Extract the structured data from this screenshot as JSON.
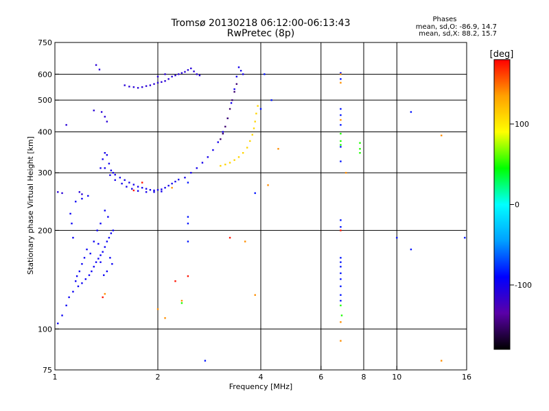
{
  "header": {
    "title_line1": "Tromsø 20130218 06:12:00-06:13:43",
    "title_line2": "RwPretec (8p)",
    "phase_title": "Phases",
    "phase_o": "mean, sd,O: -86.9, 14.7",
    "phase_x": "mean, sd,X:  88.2, 15.7"
  },
  "chart_data": {
    "type": "scatter",
    "xlabel": "Frequency [MHz]",
    "ylabel": "Stationary phase Virtual Height [km]",
    "x_scale": "log",
    "y_scale": "log",
    "xlim": [
      1,
      16
    ],
    "ylim": [
      75,
      750
    ],
    "x_ticks": [
      1,
      2,
      4,
      6,
      8,
      10,
      16
    ],
    "y_ticks": [
      75,
      100,
      200,
      300,
      400,
      500,
      600,
      750
    ],
    "x_gridlines": [
      2,
      4,
      6,
      8,
      10
    ],
    "y_gridlines": [
      100,
      200,
      300,
      400,
      500,
      600
    ],
    "grid": true,
    "colorbar": {
      "label": "[deg]",
      "min": -180,
      "max": 180,
      "ticks": [
        100,
        0,
        -100
      ],
      "colors": [
        "#000000",
        "#5a00a8",
        "#0000ff",
        "#00a0ff",
        "#00ffff",
        "#00ff00",
        "#ffff00",
        "#ffa000",
        "#ff0000"
      ]
    },
    "series": [
      {
        "phase": -95,
        "points": [
          [
            1.02,
            104
          ],
          [
            1.05,
            110
          ],
          [
            1.08,
            118
          ],
          [
            1.1,
            125
          ],
          [
            1.13,
            130
          ],
          [
            1.17,
            135
          ],
          [
            1.2,
            138
          ],
          [
            1.23,
            142
          ],
          [
            1.26,
            146
          ],
          [
            1.28,
            150
          ],
          [
            1.3,
            155
          ],
          [
            1.32,
            160
          ],
          [
            1.34,
            164
          ],
          [
            1.36,
            168
          ],
          [
            1.38,
            172
          ],
          [
            1.4,
            178
          ],
          [
            1.42,
            185
          ],
          [
            1.44,
            190
          ],
          [
            1.46,
            196
          ],
          [
            1.48,
            200
          ],
          [
            1.27,
            170
          ],
          [
            1.3,
            185
          ],
          [
            1.33,
            200
          ],
          [
            1.36,
            210
          ],
          [
            1.4,
            230
          ],
          [
            1.43,
            220
          ],
          [
            1.45,
            165
          ],
          [
            1.47,
            158
          ],
          [
            1.42,
            150
          ],
          [
            1.39,
            146
          ],
          [
            1.36,
            160
          ],
          [
            1.34,
            182
          ],
          [
            1.24,
            175
          ],
          [
            1.22,
            165
          ],
          [
            1.2,
            158
          ],
          [
            1.18,
            150
          ],
          [
            1.16,
            145
          ],
          [
            1.15,
            140
          ],
          [
            1.13,
            190
          ],
          [
            1.12,
            210
          ],
          [
            1.11,
            225
          ],
          [
            1.15,
            245
          ],
          [
            1.2,
            250
          ],
          [
            1.25,
            255
          ]
        ]
      },
      {
        "phase": -100,
        "points": [
          [
            1.36,
            310
          ],
          [
            1.38,
            330
          ],
          [
            1.4,
            345
          ],
          [
            1.42,
            340
          ],
          [
            1.44,
            320
          ],
          [
            1.46,
            305
          ],
          [
            1.48,
            300
          ],
          [
            1.5,
            296
          ],
          [
            1.55,
            290
          ],
          [
            1.6,
            285
          ],
          [
            1.65,
            280
          ],
          [
            1.7,
            276
          ],
          [
            1.75,
            272
          ],
          [
            1.8,
            270
          ],
          [
            1.85,
            268
          ],
          [
            1.9,
            266
          ],
          [
            1.95,
            265
          ],
          [
            2.0,
            266
          ],
          [
            2.05,
            267
          ],
          [
            2.1,
            270
          ],
          [
            2.15,
            274
          ],
          [
            2.2,
            278
          ],
          [
            2.25,
            282
          ],
          [
            2.3,
            286
          ],
          [
            2.4,
            290
          ],
          [
            2.5,
            300
          ],
          [
            2.6,
            310
          ],
          [
            2.7,
            322
          ],
          [
            2.8,
            335
          ],
          [
            2.9,
            352
          ],
          [
            3.0,
            372
          ],
          [
            3.1,
            400
          ],
          [
            3.2,
            440
          ],
          [
            3.28,
            490
          ],
          [
            3.35,
            540
          ],
          [
            3.4,
            590
          ],
          [
            3.45,
            630
          ],
          [
            3.5,
            615
          ],
          [
            3.55,
            600
          ],
          [
            1.4,
            310
          ],
          [
            1.45,
            295
          ],
          [
            1.5,
            285
          ],
          [
            1.57,
            278
          ],
          [
            1.62,
            272
          ],
          [
            1.68,
            268
          ],
          [
            1.75,
            264
          ],
          [
            1.85,
            262
          ],
          [
            1.95,
            262
          ],
          [
            2.05,
            263
          ]
        ]
      },
      {
        "phase": -110,
        "points": [
          [
            1.6,
            555
          ],
          [
            1.65,
            550
          ],
          [
            1.7,
            548
          ],
          [
            1.75,
            545
          ],
          [
            1.8,
            548
          ],
          [
            1.85,
            552
          ],
          [
            1.9,
            555
          ],
          [
            1.95,
            560
          ],
          [
            2.0,
            565
          ],
          [
            2.05,
            568
          ],
          [
            2.1,
            572
          ],
          [
            2.15,
            580
          ],
          [
            2.2,
            590
          ],
          [
            2.25,
            595
          ],
          [
            2.3,
            600
          ],
          [
            2.35,
            605
          ],
          [
            2.4,
            610
          ],
          [
            2.45,
            618
          ],
          [
            2.5,
            625
          ],
          [
            2.55,
            612
          ],
          [
            2.6,
            600
          ],
          [
            2.65,
            595
          ],
          [
            2.1,
            600
          ],
          [
            2.0,
            590
          ],
          [
            1.32,
            640
          ],
          [
            1.35,
            620
          ],
          [
            1.3,
            465
          ],
          [
            1.37,
            460
          ],
          [
            1.4,
            445
          ],
          [
            1.42,
            430
          ],
          [
            1.08,
            420
          ],
          [
            1.2,
            258
          ],
          [
            1.18,
            262
          ],
          [
            1.05,
            260
          ],
          [
            1.02,
            262
          ]
        ]
      },
      {
        "phase": -150,
        "points": [
          [
            3.05,
            380
          ],
          [
            3.1,
            395
          ],
          [
            3.15,
            415
          ],
          [
            3.2,
            440
          ],
          [
            3.25,
            470
          ],
          [
            3.3,
            500
          ],
          [
            3.35,
            530
          ],
          [
            3.4,
            560
          ]
        ]
      },
      {
        "phase": 110,
        "points": [
          [
            3.05,
            315
          ],
          [
            3.15,
            318
          ],
          [
            3.25,
            322
          ],
          [
            3.35,
            328
          ],
          [
            3.45,
            335
          ],
          [
            3.55,
            345
          ],
          [
            3.65,
            358
          ],
          [
            3.72,
            375
          ],
          [
            3.78,
            392
          ],
          [
            3.82,
            410
          ],
          [
            3.85,
            430
          ],
          [
            3.88,
            455
          ],
          [
            3.92,
            480
          ]
        ]
      },
      {
        "phase": -85,
        "points": [
          [
            4.0,
            470
          ],
          [
            4.1,
            600
          ],
          [
            4.3,
            500
          ],
          [
            6.85,
            605
          ],
          [
            6.85,
            580
          ],
          [
            6.85,
            470
          ],
          [
            6.85,
            450
          ],
          [
            6.85,
            420
          ],
          [
            6.85,
            360
          ],
          [
            6.85,
            325
          ],
          [
            6.85,
            215
          ],
          [
            6.85,
            205
          ],
          [
            6.85,
            165
          ],
          [
            6.85,
            160
          ],
          [
            6.85,
            155
          ],
          [
            6.85,
            148
          ],
          [
            6.85,
            142
          ],
          [
            6.85,
            135
          ],
          [
            6.85,
            127
          ],
          [
            6.85,
            122
          ],
          [
            11.0,
            460
          ],
          [
            11.0,
            175
          ],
          [
            10.0,
            190
          ],
          [
            15.8,
            190
          ],
          [
            3.85,
            260
          ],
          [
            2.45,
            210
          ],
          [
            2.45,
            220
          ],
          [
            2.45,
            280
          ],
          [
            2.45,
            185
          ],
          [
            2.75,
            80
          ]
        ]
      },
      {
        "phase": 50,
        "points": [
          [
            6.85,
            395
          ],
          [
            6.85,
            375
          ],
          [
            6.85,
            365
          ],
          [
            7.8,
            370
          ],
          [
            7.8,
            355
          ],
          [
            7.8,
            345
          ],
          [
            6.85,
            118
          ],
          [
            6.9,
            110
          ],
          [
            2.35,
            120
          ]
        ]
      },
      {
        "phase": 140,
        "points": [
          [
            6.85,
            600
          ],
          [
            6.85,
            565
          ],
          [
            6.85,
            435
          ],
          [
            6.85,
            105
          ],
          [
            6.85,
            92
          ],
          [
            4.5,
            355
          ],
          [
            4.2,
            275
          ],
          [
            7.1,
            300
          ],
          [
            13.5,
            80
          ],
          [
            13.5,
            390
          ],
          [
            3.85,
            127
          ],
          [
            2.1,
            108
          ],
          [
            2.0,
            115
          ],
          [
            2.35,
            122
          ],
          [
            3.6,
            185
          ],
          [
            1.4,
            128
          ],
          [
            2.2,
            270
          ]
        ]
      },
      {
        "phase": 175,
        "points": [
          [
            2.25,
            140
          ],
          [
            3.25,
            190
          ],
          [
            2.45,
            145
          ],
          [
            1.7,
            265
          ],
          [
            1.8,
            280
          ],
          [
            6.85,
            200
          ],
          [
            1.38,
            125
          ]
        ]
      }
    ]
  }
}
